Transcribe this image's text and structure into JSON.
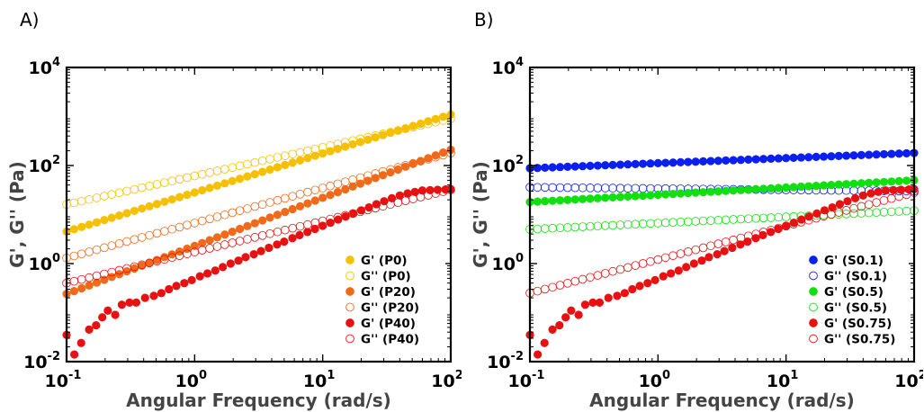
{
  "chart_data": [
    {
      "type": "scatter",
      "panel_label": "A)",
      "xlabel": "Angular Frequency (rad/s)",
      "ylabel": "G', G'' (Pa)",
      "xscale": "log",
      "yscale": "log",
      "xlim": [
        0.1,
        100
      ],
      "ylim": [
        0.01,
        10000
      ],
      "xticks": [
        {
          "base": "10",
          "exp": "-1",
          "value": 0.1
        },
        {
          "base": "10",
          "exp": "0",
          "value": 1
        },
        {
          "base": "10",
          "exp": "1",
          "value": 10
        },
        {
          "base": "10",
          "exp": "2",
          "value": 100
        }
      ],
      "yticks": [
        {
          "base": "10",
          "exp": "-2",
          "value": 0.01
        },
        {
          "base": "10",
          "exp": "0",
          "value": 1
        },
        {
          "base": "10",
          "exp": "2",
          "value": 100
        },
        {
          "base": "10",
          "exp": "4",
          "value": 10000
        }
      ],
      "grid": false,
      "legend_position": "bottom-right",
      "series": [
        {
          "name": "G' (P0)",
          "color": "#f5c000",
          "filled": true,
          "type": "power",
          "y_start": 4.5,
          "y_end": 1100
        },
        {
          "name": "G'' (P0)",
          "color": "#f5c000",
          "filled": false,
          "type": "power",
          "y_start": 16,
          "y_end": 900
        },
        {
          "name": "G' (P20)",
          "color": "#f06a1a",
          "filled": true,
          "type": "power",
          "y_start": 0.24,
          "y_end": 210
        },
        {
          "name": "G'' (P20)",
          "color": "#f06a1a",
          "filled": false,
          "type": "power",
          "y_start": 1.3,
          "y_end": 180
        },
        {
          "name": "G' (P40)",
          "color": "#e81010",
          "filled": true,
          "type": "points",
          "points": [
            [
              0.1,
              0.035
            ],
            [
              0.115,
              0.014
            ],
            [
              0.13,
              0.024
            ],
            [
              0.15,
              0.045
            ],
            [
              0.17,
              0.055
            ],
            [
              0.19,
              0.08
            ],
            [
              0.21,
              0.11
            ],
            [
              0.24,
              0.09
            ],
            [
              0.27,
              0.145
            ],
            [
              0.31,
              0.16
            ],
            [
              0.35,
              0.16
            ],
            [
              0.41,
              0.2
            ],
            [
              0.48,
              0.22
            ],
            [
              0.55,
              0.25
            ],
            [
              0.63,
              0.3
            ],
            [
              0.72,
              0.35
            ],
            [
              0.83,
              0.4
            ],
            [
              0.95,
              0.46
            ],
            [
              1.1,
              0.55
            ],
            [
              1.26,
              0.63
            ],
            [
              1.45,
              0.72
            ],
            [
              1.66,
              0.85
            ],
            [
              1.91,
              1.0
            ],
            [
              2.2,
              1.15
            ],
            [
              2.5,
              1.35
            ],
            [
              2.9,
              1.55
            ],
            [
              3.3,
              1.8
            ],
            [
              3.8,
              2.1
            ],
            [
              4.4,
              2.45
            ],
            [
              5.0,
              2.8
            ],
            [
              5.8,
              3.3
            ],
            [
              6.6,
              3.8
            ],
            [
              7.6,
              4.4
            ],
            [
              8.7,
              5.1
            ],
            [
              10,
              5.9
            ],
            [
              11.5,
              6.8
            ],
            [
              13.2,
              7.9
            ],
            [
              15.1,
              9.1
            ],
            [
              17.4,
              10.5
            ],
            [
              20,
              12.2
            ],
            [
              23,
              14
            ],
            [
              26.3,
              16.3
            ],
            [
              30.2,
              18.7
            ],
            [
              34.7,
              21.5
            ],
            [
              40,
              24.5
            ],
            [
              46,
              27
            ],
            [
              52.5,
              29
            ],
            [
              60,
              31
            ],
            [
              69,
              31.5
            ],
            [
              79,
              32
            ],
            [
              91,
              32.5
            ],
            [
              100,
              33
            ]
          ]
        },
        {
          "name": "G'' (P40)",
          "color": "#e81010",
          "filled": false,
          "type": "power",
          "y_start": 0.4,
          "y_end": 32
        }
      ]
    },
    {
      "type": "scatter",
      "panel_label": "B)",
      "xlabel": "Angular Frequency (rad/s)",
      "ylabel": "G', G'' (Pa)",
      "xscale": "log",
      "yscale": "log",
      "xlim": [
        0.1,
        100
      ],
      "ylim": [
        0.01,
        10000
      ],
      "xticks": [
        {
          "base": "10",
          "exp": "-1",
          "value": 0.1
        },
        {
          "base": "10",
          "exp": "0",
          "value": 1
        },
        {
          "base": "10",
          "exp": "1",
          "value": 10
        },
        {
          "base": "10",
          "exp": "2",
          "value": 100
        }
      ],
      "yticks": [
        {
          "base": "10",
          "exp": "-2",
          "value": 0.01
        },
        {
          "base": "10",
          "exp": "0",
          "value": 1
        },
        {
          "base": "10",
          "exp": "2",
          "value": 100
        },
        {
          "base": "10",
          "exp": "4",
          "value": 10000
        }
      ],
      "grid": false,
      "legend_position": "bottom-right",
      "series": [
        {
          "name": "G' (S0.1)",
          "color": "#0a1ff0",
          "filled": true,
          "type": "power",
          "y_start": 88,
          "y_end": 180
        },
        {
          "name": "G'' (S0.1)",
          "color": "#0a1ff0",
          "filled": false,
          "type": "power",
          "y_start": 36,
          "y_end": 30
        },
        {
          "name": "G' (S0.5)",
          "color": "#10e010",
          "filled": true,
          "type": "power",
          "y_start": 18,
          "y_end": 50
        },
        {
          "name": "G'' (S0.5)",
          "color": "#10e010",
          "filled": false,
          "type": "power",
          "y_start": 5,
          "y_end": 12
        },
        {
          "name": "G' (S0.75)",
          "color": "#e81010",
          "filled": true,
          "type": "points",
          "points": [
            [
              0.1,
              0.035
            ],
            [
              0.115,
              0.014
            ],
            [
              0.13,
              0.024
            ],
            [
              0.15,
              0.045
            ],
            [
              0.17,
              0.055
            ],
            [
              0.19,
              0.08
            ],
            [
              0.21,
              0.11
            ],
            [
              0.24,
              0.09
            ],
            [
              0.27,
              0.145
            ],
            [
              0.31,
              0.16
            ],
            [
              0.35,
              0.16
            ],
            [
              0.41,
              0.2
            ],
            [
              0.48,
              0.22
            ],
            [
              0.55,
              0.25
            ],
            [
              0.63,
              0.3
            ],
            [
              0.72,
              0.35
            ],
            [
              0.83,
              0.4
            ],
            [
              0.95,
              0.46
            ],
            [
              1.1,
              0.55
            ],
            [
              1.26,
              0.63
            ],
            [
              1.45,
              0.72
            ],
            [
              1.66,
              0.85
            ],
            [
              1.91,
              1.0
            ],
            [
              2.2,
              1.15
            ],
            [
              2.5,
              1.35
            ],
            [
              2.9,
              1.55
            ],
            [
              3.3,
              1.8
            ],
            [
              3.8,
              2.1
            ],
            [
              4.4,
              2.45
            ],
            [
              5.0,
              2.8
            ],
            [
              5.8,
              3.3
            ],
            [
              6.6,
              3.8
            ],
            [
              7.6,
              4.4
            ],
            [
              8.7,
              5.1
            ],
            [
              10,
              5.9
            ],
            [
              11.5,
              6.8
            ],
            [
              13.2,
              7.9
            ],
            [
              15.1,
              9.1
            ],
            [
              17.4,
              10.5
            ],
            [
              20,
              12.2
            ],
            [
              23,
              14
            ],
            [
              26.3,
              16.3
            ],
            [
              30.2,
              18.7
            ],
            [
              34.7,
              21.5
            ],
            [
              40,
              24.5
            ],
            [
              46,
              27
            ],
            [
              52.5,
              29
            ],
            [
              60,
              31
            ],
            [
              69,
              31.5
            ],
            [
              79,
              32
            ],
            [
              91,
              32.5
            ],
            [
              100,
              33
            ]
          ]
        },
        {
          "name": "G'' (S0.75)",
          "color": "#e81010",
          "filled": false,
          "type": "power",
          "y_start": 0.25,
          "y_end": 28
        }
      ]
    }
  ]
}
